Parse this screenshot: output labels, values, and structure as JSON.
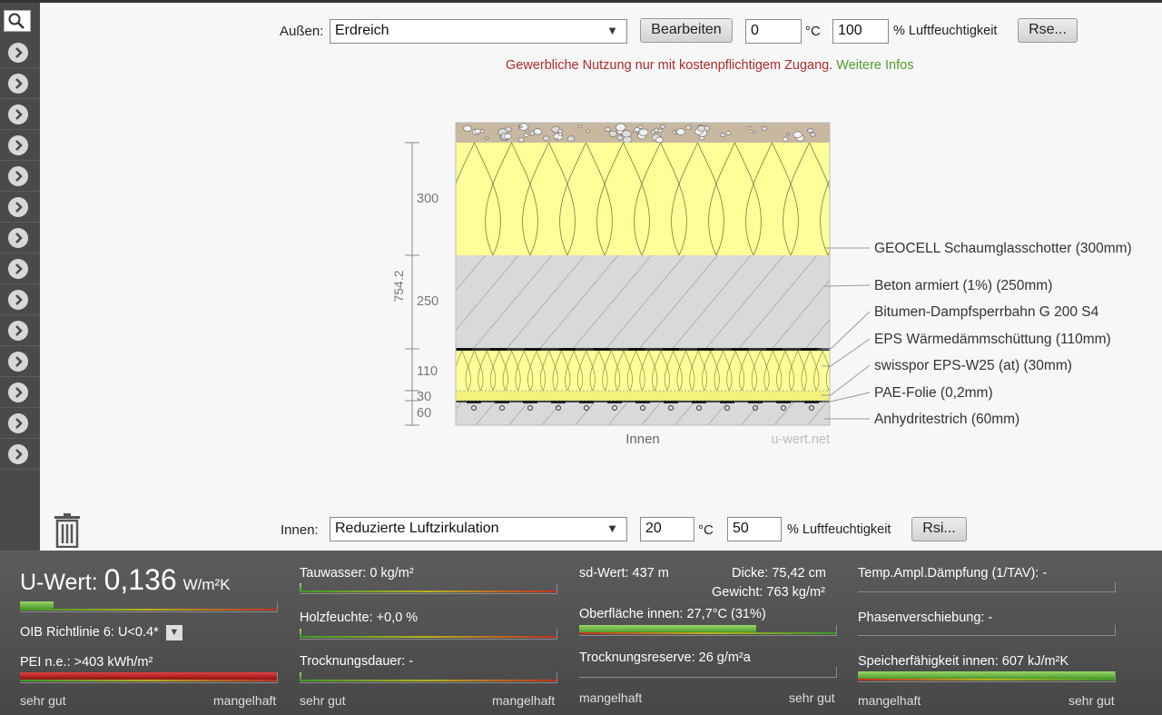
{
  "exterior": {
    "label": "Außen:",
    "select_value": "Erdreich",
    "edit_label": "Bearbeiten",
    "temperature": "0",
    "temp_unit": "°C",
    "humidity": "100",
    "humidity_label": "% Luftfeuchtigkeit",
    "rse_label": "Rse..."
  },
  "notice": {
    "text": "Gewerbliche Nutzung nur mit kostenpflichtigem Zugang.",
    "link": "Weitere Infos"
  },
  "diagram": {
    "total_thickness": "754.2",
    "dimensions": [
      "300",
      "250",
      "110",
      "30",
      "60"
    ],
    "layers": [
      "GEOCELL Schaumglasschotter (300mm)",
      "Beton armiert (1%) (250mm)",
      "Bitumen-Dampfsperrbahn G 200 S4",
      "EPS Wärmedämmschüttung (110mm)",
      "swisspor EPS-W25 (at) (30mm)",
      "PAE-Folie (0,2mm)",
      "Anhydritestrich (60mm)"
    ],
    "inside_label": "Innen",
    "watermark": "u-wert.net",
    "colors": {
      "insulation": "#ffff99",
      "concrete": "#d9d9d9",
      "gravel": "#c8b8a0"
    }
  },
  "interior": {
    "label": "Innen:",
    "select_value": "Reduzierte Luftzirkulation",
    "temperature": "20",
    "temp_unit": "°C",
    "humidity": "50",
    "humidity_label": "% Luftfeuchtigkeit",
    "rsi_label": "Rsi..."
  },
  "sidebar": {
    "icons": [
      "search-icon",
      "chevron-right-icon"
    ],
    "item_count_visible": 14
  },
  "results": {
    "uwert_prefix": "U-Wert:",
    "uwert_value": "0,136",
    "uwert_unit": "W/m²K",
    "uwert_level": 0.13,
    "oib_label": "OIB Richtlinie 6: U<0.4*",
    "pei_label": "PEI n.e.: >403 kWh/m²",
    "pei_level": 1.0,
    "col1_left": "sehr gut",
    "col1_right": "mangelhaft",
    "tauwasser": "Tauwasser: 0 kg/m²",
    "holzfeuchte": "Holzfeuchte: +0,0 %",
    "trocknungsdauer": "Trocknungsdauer: -",
    "col2_left": "sehr gut",
    "col2_right": "mangelhaft",
    "sd_wert": "sd-Wert: 437 m",
    "dicke": "Dicke: 75,42 cm",
    "gewicht": "Gewicht: 763 kg/m²",
    "oberflaeche": "Oberfläche innen: 27,7°C (31%)",
    "oberflaeche_level": 0.69,
    "trocknungsreserve": "Trocknungsreserve: 26 g/m²a",
    "col3_left": "mangelhaft",
    "col3_right": "sehr gut",
    "temp_ampl": "Temp.Ampl.Dämpfung (1/TAV): -",
    "phasen": "Phasenverschiebung: -",
    "speicher": "Speicherfähigkeit innen: 607 kJ/m²K",
    "speicher_level": 1.0,
    "col4_left": "mangelhaft",
    "col4_right": "sehr gut"
  }
}
